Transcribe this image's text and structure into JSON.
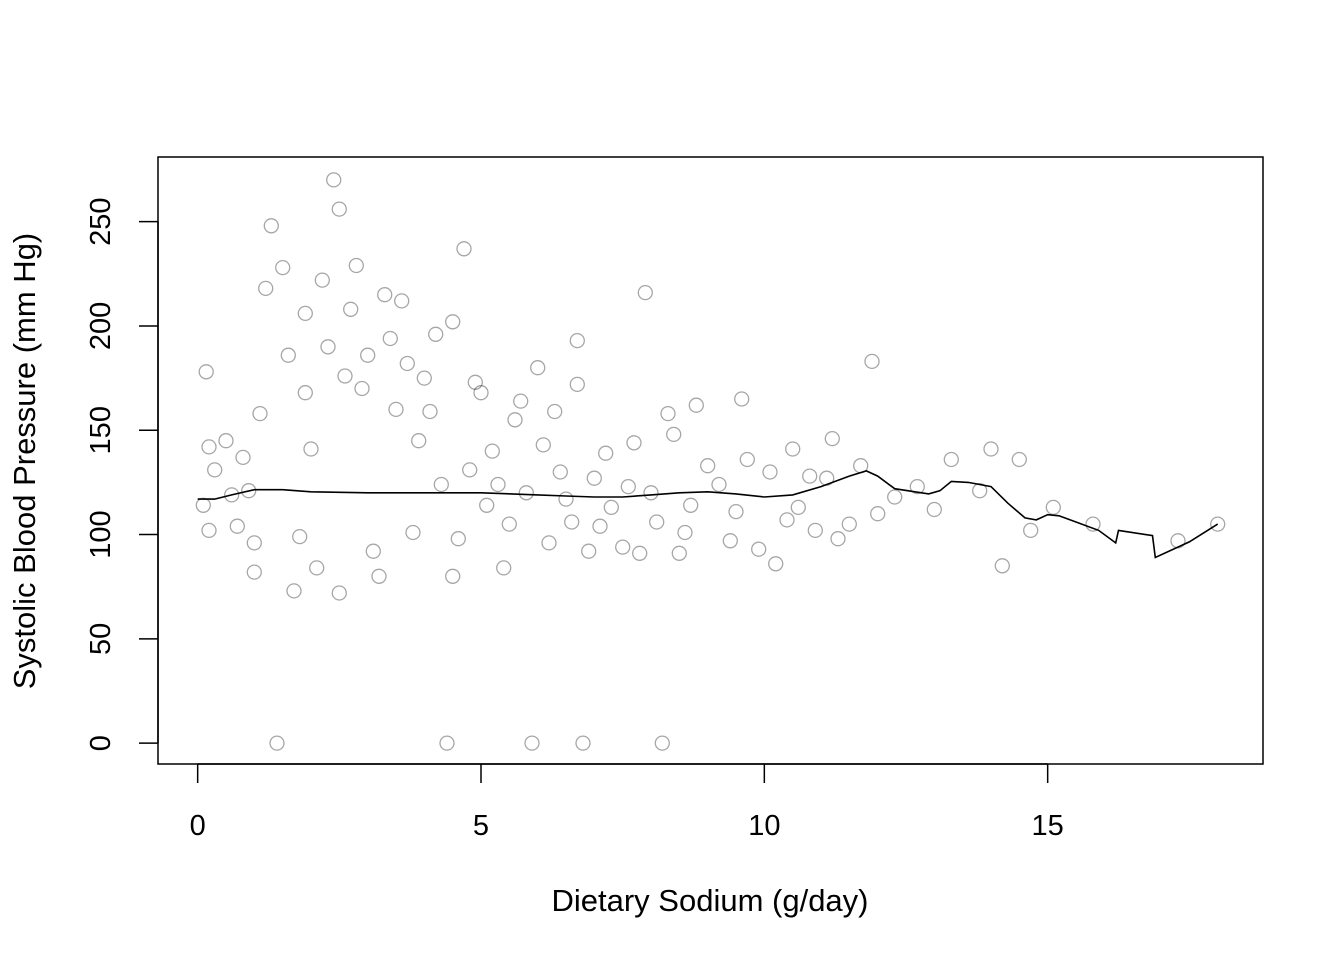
{
  "chart_data": {
    "type": "scatter",
    "title": "",
    "xlabel": "Dietary Sodium (g/day)",
    "ylabel": "Systolic Blood Pressure (mm Hg)",
    "xlim": [
      -0.7,
      18.8
    ],
    "ylim": [
      -10,
      281
    ],
    "x_ticks": [
      0,
      5,
      10,
      15
    ],
    "y_ticks": [
      0,
      50,
      100,
      150,
      200,
      250
    ],
    "x_tick_labels": [
      "0",
      "5",
      "10",
      "15"
    ],
    "y_tick_labels": [
      "0",
      "50",
      "100",
      "150",
      "200",
      "250"
    ],
    "grid": false,
    "legend": "none",
    "marker": "open-circle",
    "point_color": "#000000",
    "point_opacity": 0.07,
    "smooth_line_color": "#000000",
    "points": [
      [
        0.1,
        114
      ],
      [
        0.2,
        142
      ],
      [
        0.2,
        102
      ],
      [
        0.15,
        178
      ],
      [
        0.3,
        131
      ],
      [
        0.5,
        145
      ],
      [
        0.6,
        119
      ],
      [
        0.7,
        104
      ],
      [
        0.8,
        137
      ],
      [
        0.9,
        121
      ],
      [
        1.0,
        82
      ],
      [
        1.0,
        96
      ],
      [
        1.1,
        158
      ],
      [
        1.2,
        218
      ],
      [
        1.3,
        248
      ],
      [
        1.4,
        0
      ],
      [
        1.5,
        228
      ],
      [
        1.6,
        186
      ],
      [
        1.7,
        73
      ],
      [
        1.8,
        99
      ],
      [
        1.9,
        168
      ],
      [
        1.9,
        206
      ],
      [
        2.0,
        141
      ],
      [
        2.1,
        84
      ],
      [
        2.2,
        222
      ],
      [
        2.3,
        190
      ],
      [
        2.4,
        270
      ],
      [
        2.5,
        256
      ],
      [
        2.5,
        72
      ],
      [
        2.6,
        176
      ],
      [
        2.7,
        208
      ],
      [
        2.8,
        229
      ],
      [
        2.9,
        170
      ],
      [
        3.0,
        186
      ],
      [
        3.1,
        92
      ],
      [
        3.2,
        80
      ],
      [
        3.3,
        215
      ],
      [
        3.4,
        194
      ],
      [
        3.5,
        160
      ],
      [
        3.6,
        212
      ],
      [
        3.7,
        182
      ],
      [
        3.8,
        101
      ],
      [
        3.9,
        145
      ],
      [
        4.0,
        175
      ],
      [
        4.1,
        159
      ],
      [
        4.2,
        196
      ],
      [
        4.3,
        124
      ],
      [
        4.4,
        0
      ],
      [
        4.5,
        202
      ],
      [
        4.5,
        80
      ],
      [
        4.6,
        98
      ],
      [
        4.7,
        237
      ],
      [
        4.8,
        131
      ],
      [
        4.9,
        173
      ],
      [
        5.0,
        168
      ],
      [
        5.1,
        114
      ],
      [
        5.2,
        140
      ],
      [
        5.3,
        124
      ],
      [
        5.4,
        84
      ],
      [
        5.5,
        105
      ],
      [
        5.6,
        155
      ],
      [
        5.7,
        164
      ],
      [
        5.8,
        120
      ],
      [
        5.9,
        0
      ],
      [
        6.0,
        180
      ],
      [
        6.1,
        143
      ],
      [
        6.2,
        96
      ],
      [
        6.3,
        159
      ],
      [
        6.4,
        130
      ],
      [
        6.5,
        117
      ],
      [
        6.6,
        106
      ],
      [
        6.7,
        172
      ],
      [
        6.7,
        193
      ],
      [
        6.8,
        0
      ],
      [
        6.9,
        92
      ],
      [
        7.0,
        127
      ],
      [
        7.1,
        104
      ],
      [
        7.2,
        139
      ],
      [
        7.3,
        113
      ],
      [
        7.5,
        94
      ],
      [
        7.6,
        123
      ],
      [
        7.7,
        144
      ],
      [
        7.8,
        91
      ],
      [
        7.9,
        216
      ],
      [
        8.0,
        120
      ],
      [
        8.1,
        106
      ],
      [
        8.2,
        0
      ],
      [
        8.3,
        158
      ],
      [
        8.4,
        148
      ],
      [
        8.5,
        91
      ],
      [
        8.6,
        101
      ],
      [
        8.7,
        114
      ],
      [
        8.8,
        162
      ],
      [
        9.0,
        133
      ],
      [
        9.2,
        124
      ],
      [
        9.4,
        97
      ],
      [
        9.5,
        111
      ],
      [
        9.6,
        165
      ],
      [
        9.7,
        136
      ],
      [
        9.9,
        93
      ],
      [
        10.1,
        130
      ],
      [
        10.2,
        86
      ],
      [
        10.4,
        107
      ],
      [
        10.5,
        141
      ],
      [
        10.6,
        113
      ],
      [
        10.8,
        128
      ],
      [
        10.9,
        102
      ],
      [
        11.1,
        127
      ],
      [
        11.2,
        146
      ],
      [
        11.3,
        98
      ],
      [
        11.5,
        105
      ],
      [
        11.7,
        133
      ],
      [
        11.9,
        183
      ],
      [
        12.0,
        110
      ],
      [
        12.3,
        118
      ],
      [
        12.7,
        123
      ],
      [
        13.0,
        112
      ],
      [
        13.3,
        136
      ],
      [
        13.8,
        121
      ],
      [
        14.0,
        141
      ],
      [
        14.2,
        85
      ],
      [
        14.5,
        136
      ],
      [
        14.7,
        102
      ],
      [
        15.1,
        113
      ],
      [
        15.8,
        105
      ],
      [
        17.3,
        97
      ],
      [
        18.0,
        105
      ]
    ],
    "smooth_line": [
      [
        0.0,
        117
      ],
      [
        0.3,
        117
      ],
      [
        0.6,
        119
      ],
      [
        1.0,
        121.5
      ],
      [
        1.5,
        121.5
      ],
      [
        2.0,
        120.5
      ],
      [
        3.0,
        120
      ],
      [
        4.0,
        120
      ],
      [
        5.0,
        120
      ],
      [
        6.0,
        119
      ],
      [
        6.5,
        118.5
      ],
      [
        7.0,
        118
      ],
      [
        7.5,
        118
      ],
      [
        8.0,
        119
      ],
      [
        8.5,
        120
      ],
      [
        9.0,
        120.5
      ],
      [
        9.5,
        119.5
      ],
      [
        10.0,
        118
      ],
      [
        10.5,
        119
      ],
      [
        11.0,
        123
      ],
      [
        11.5,
        128
      ],
      [
        11.8,
        130.5
      ],
      [
        12.0,
        128
      ],
      [
        12.3,
        122
      ],
      [
        12.9,
        119.5
      ],
      [
        13.1,
        121
      ],
      [
        13.3,
        125.5
      ],
      [
        13.6,
        125
      ],
      [
        14.0,
        123
      ],
      [
        14.3,
        115
      ],
      [
        14.6,
        108
      ],
      [
        14.8,
        107
      ],
      [
        15.0,
        109.5
      ],
      [
        15.2,
        109
      ],
      [
        15.5,
        106
      ],
      [
        15.9,
        102
      ],
      [
        16.2,
        96
      ],
      [
        16.25,
        102
      ],
      [
        16.85,
        99.5
      ],
      [
        16.9,
        89
      ],
      [
        17.5,
        96.5
      ],
      [
        18.0,
        105
      ]
    ]
  }
}
